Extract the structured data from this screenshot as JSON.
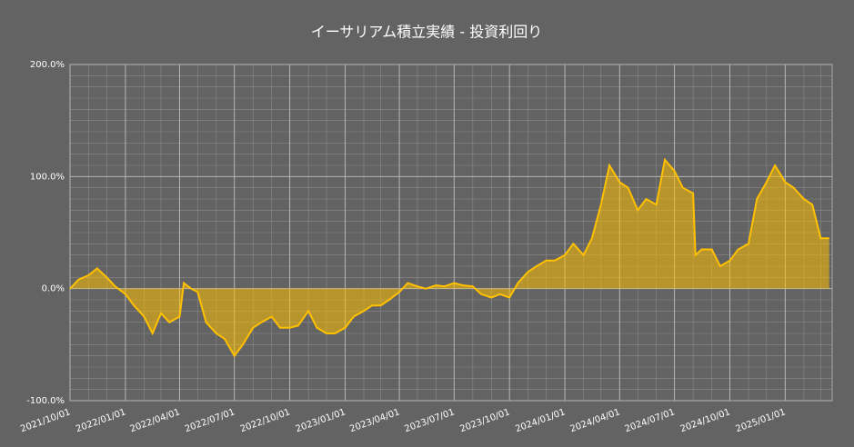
{
  "chart_data": {
    "type": "area",
    "title": "イーサリアム積立実績 - 投資利回り",
    "x": [
      "2021/10/01",
      "2021/10/15",
      "2021/11/01",
      "2021/11/15",
      "2021/12/01",
      "2021/12/15",
      "2022/01/01",
      "2022/01/15",
      "2022/02/01",
      "2022/02/15",
      "2022/03/01",
      "2022/03/15",
      "2022/04/01",
      "2022/04/08",
      "2022/04/20",
      "2022/05/01",
      "2022/05/15",
      "2022/06/01",
      "2022/06/15",
      "2022/07/01",
      "2022/07/15",
      "2022/08/01",
      "2022/08/15",
      "2022/09/01",
      "2022/09/15",
      "2022/10/01",
      "2022/10/15",
      "2022/11/01",
      "2022/11/15",
      "2022/12/01",
      "2022/12/15",
      "2023/01/01",
      "2023/01/15",
      "2023/02/01",
      "2023/02/15",
      "2023/03/01",
      "2023/03/15",
      "2023/04/01",
      "2023/04/15",
      "2023/05/01",
      "2023/05/15",
      "2023/06/01",
      "2023/06/15",
      "2023/07/01",
      "2023/07/15",
      "2023/08/01",
      "2023/08/15",
      "2023/09/01",
      "2023/09/15",
      "2023/10/01",
      "2023/10/15",
      "2023/11/01",
      "2023/11/15",
      "2023/12/01",
      "2023/12/15",
      "2024/01/01",
      "2024/01/15",
      "2024/02/01",
      "2024/02/15",
      "2024/03/01",
      "2024/03/15",
      "2024/04/01",
      "2024/04/15",
      "2024/05/01",
      "2024/05/15",
      "2024/06/01",
      "2024/06/15",
      "2024/07/01",
      "2024/07/15",
      "2024/08/01",
      "2024/08/05",
      "2024/08/15",
      "2024/09/01",
      "2024/09/15",
      "2024/10/01",
      "2024/10/15",
      "2024/11/01",
      "2024/11/15",
      "2024/12/01",
      "2024/12/15",
      "2025/01/01",
      "2025/01/15",
      "2025/02/01",
      "2025/02/15",
      "2025/03/01",
      "2025/03/15"
    ],
    "series": [
      {
        "color": "#ffc000",
        "values": [
          0,
          8,
          12,
          18,
          10,
          2,
          -5,
          -15,
          -25,
          -40,
          -22,
          -30,
          -25,
          5,
          0,
          -3,
          -30,
          -40,
          -45,
          -60,
          -50,
          -35,
          -30,
          -25,
          -35,
          -35,
          -33,
          -20,
          -35,
          -40,
          -40,
          -35,
          -25,
          -20,
          -15,
          -15,
          -10,
          -3,
          5,
          2,
          0,
          3,
          2,
          5,
          3,
          2,
          -5,
          -8,
          -5,
          -8,
          5,
          15,
          20,
          25,
          25,
          30,
          40,
          30,
          45,
          75,
          110,
          95,
          90,
          70,
          80,
          75,
          115,
          105,
          90,
          85,
          30,
          35,
          35,
          20,
          25,
          35,
          40,
          80,
          95,
          110,
          95,
          90,
          80,
          75,
          45,
          45
        ]
      }
    ],
    "xlim": [
      "2021/10/01",
      "2025/03/20"
    ],
    "xticks": [
      "2021/10/01",
      "2022/01/01",
      "2022/04/01",
      "2022/07/01",
      "2022/10/01",
      "2023/01/01",
      "2023/04/01",
      "2023/07/01",
      "2023/10/01",
      "2024/01/01",
      "2024/04/01",
      "2024/07/01",
      "2024/10/01",
      "2025/01/01"
    ],
    "ylim": [
      -100,
      200
    ],
    "yticks": [
      {
        "value": -100,
        "label": "-100.0%"
      },
      {
        "value": 0,
        "label": "0.0%"
      },
      {
        "value": 100,
        "label": "100.0%"
      },
      {
        "value": 200,
        "label": "200.0%"
      }
    ],
    "grid": true,
    "minor_grid": true
  }
}
